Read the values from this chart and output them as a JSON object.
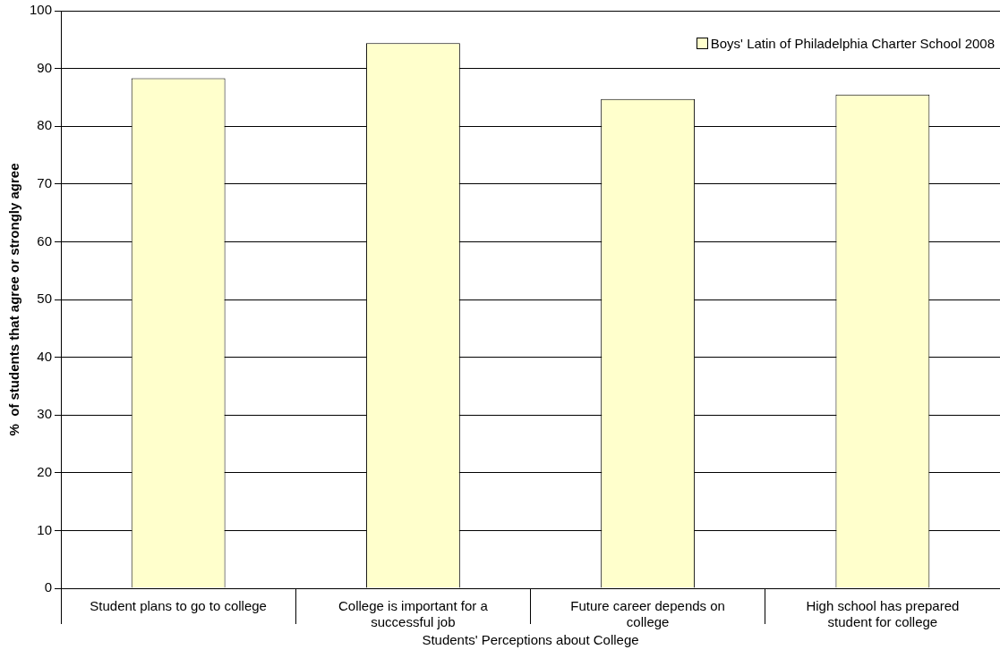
{
  "chart_data": {
    "type": "bar",
    "xlabel": "Students' Perceptions about College",
    "ylabel": "%  of students that agree or strongly agree",
    "categories": [
      "Student plans to go to college",
      "College is important for a successful job",
      "Future career depends on college",
      "High school has prepared student for college"
    ],
    "series": [
      {
        "name": "Boys' Latin of Philadelphia Charter School 2008",
        "color": "#ffffcc",
        "values": [
          88.3,
          94.4,
          84.7,
          85.5
        ]
      }
    ],
    "ylim": [
      0,
      100
    ],
    "yticks": [
      0,
      10,
      20,
      30,
      40,
      50,
      60,
      70,
      80,
      90,
      100
    ],
    "grid": "y",
    "legend": "top right"
  }
}
